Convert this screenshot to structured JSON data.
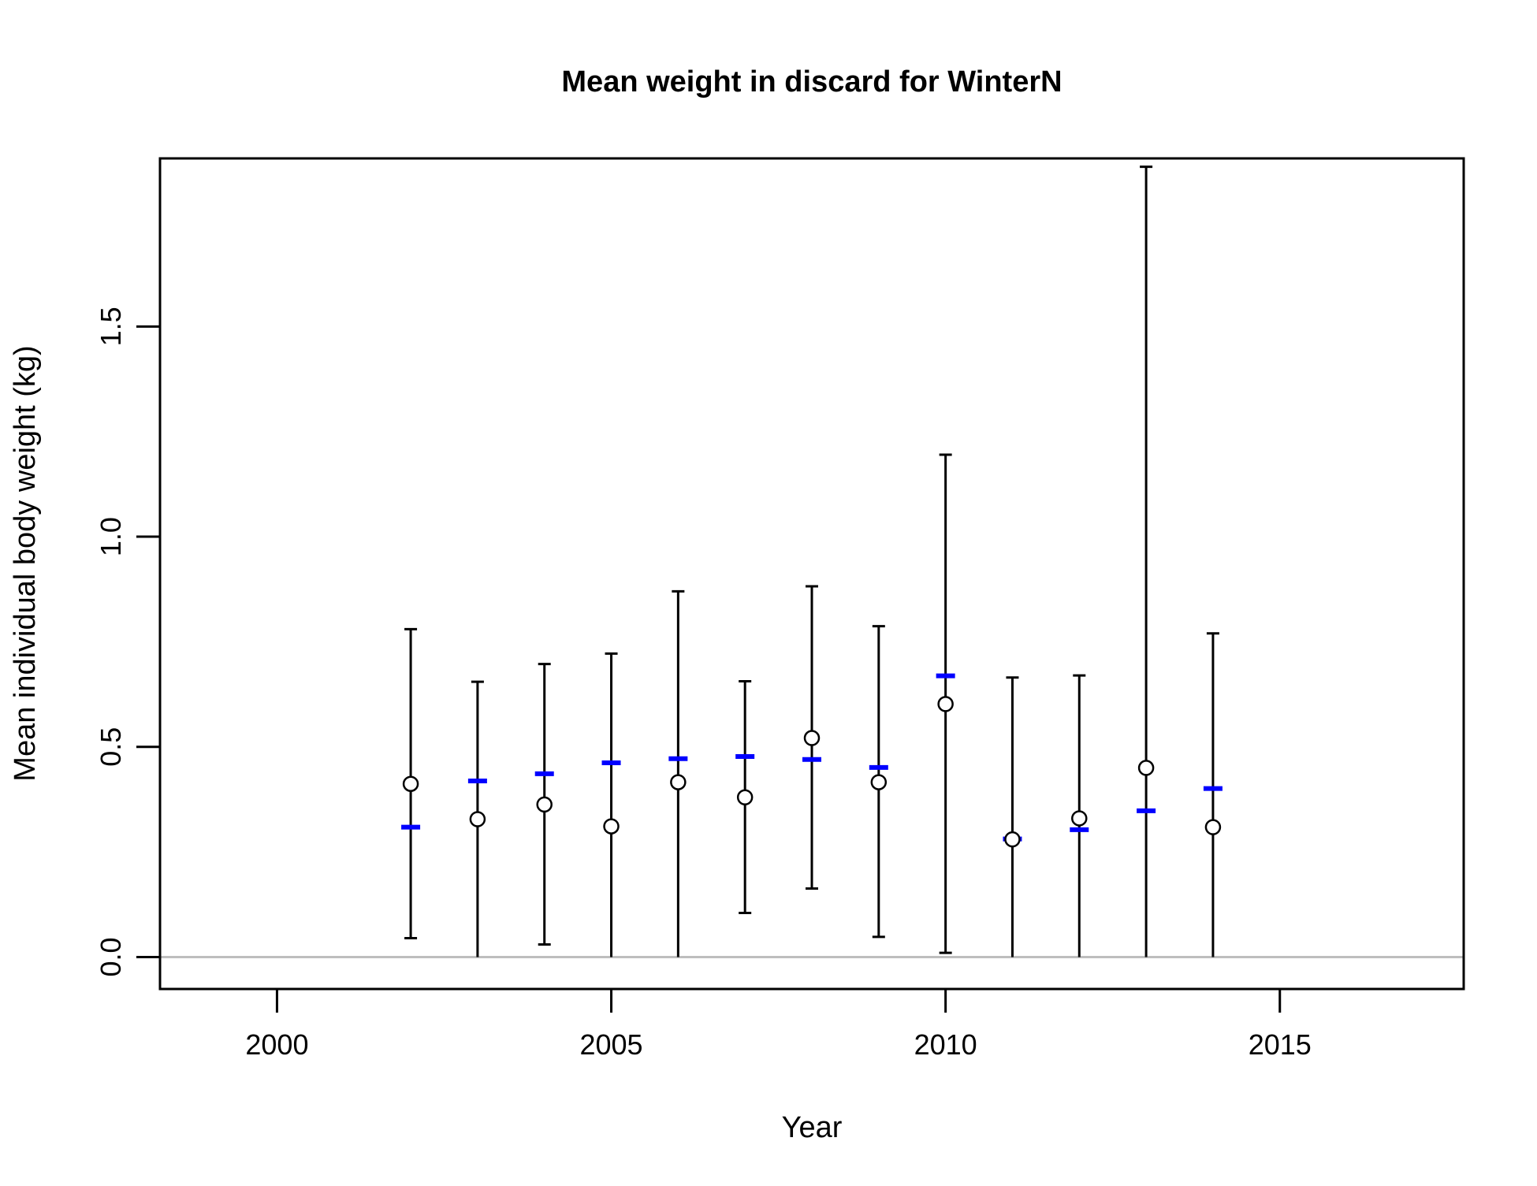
{
  "chart_data": {
    "type": "scatter",
    "title": "Mean weight in discard for WinterN",
    "xlabel": "Year",
    "ylabel": "Mean individual body weight (kg)",
    "xlim": [
      1998.25,
      2017.75
    ],
    "ylim": [
      -0.076,
      1.9
    ],
    "x_ticks": [
      2000,
      2005,
      2010,
      2015
    ],
    "x_tick_labels": [
      "2000",
      "2005",
      "2010",
      "2015"
    ],
    "y_ticks": [
      0.0,
      0.5,
      1.0,
      1.5
    ],
    "y_tick_labels": [
      "0.0",
      "0.5",
      "1.0",
      "1.5"
    ],
    "reference_line": {
      "y": 0,
      "color": "#bebebe"
    },
    "grid": false,
    "legend": "none",
    "colors": {
      "observed": "#000000",
      "expected": "#0000ff",
      "error_bar": "#000000"
    },
    "x": [
      2002,
      2003,
      2004,
      2005,
      2006,
      2007,
      2008,
      2009,
      2010,
      2011,
      2012,
      2013,
      2014
    ],
    "series": [
      {
        "marker": "open-circle",
        "values": [
          0.412,
          0.328,
          0.363,
          0.311,
          0.416,
          0.38,
          0.521,
          0.416,
          0.602,
          0.28,
          0.33,
          0.45,
          0.309
        ]
      },
      {
        "marker": "blue-dash",
        "values": [
          0.309,
          0.419,
          0.436,
          0.462,
          0.472,
          0.477,
          0.47,
          0.451,
          0.669,
          0.281,
          0.303,
          0.348,
          0.401
        ]
      }
    ],
    "error_bars": {
      "lower": [
        0.045,
        0.0,
        0.03,
        0.0,
        0.0,
        0.105,
        0.163,
        0.048,
        0.01,
        0.0,
        0.0,
        0.0,
        0.0
      ],
      "upper": [
        0.78,
        0.655,
        0.697,
        0.722,
        0.87,
        0.656,
        0.882,
        0.787,
        1.195,
        0.665,
        0.67,
        1.88,
        0.77
      ],
      "lower_cap": [
        true,
        false,
        true,
        false,
        false,
        true,
        true,
        true,
        true,
        false,
        false,
        false,
        false
      ]
    }
  }
}
